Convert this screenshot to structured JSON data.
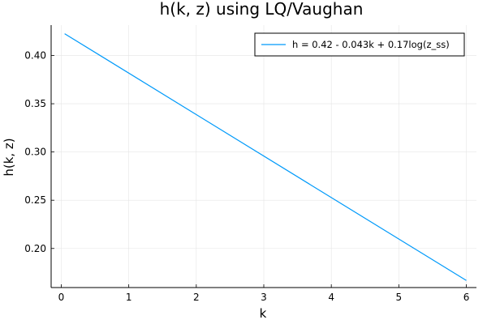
{
  "chart_data": {
    "type": "line",
    "title": "h(k, z) using LQ/Vaughan",
    "xlabel": "k",
    "ylabel": "h(k, z)",
    "xlim": [
      -0.15,
      6.15
    ],
    "ylim": [
      0.1595,
      0.4315
    ],
    "xticks": [
      0,
      1,
      2,
      3,
      4,
      5,
      6
    ],
    "yticks": [
      0.2,
      0.25,
      0.3,
      0.35,
      0.4
    ],
    "xtick_labels": [
      "0",
      "1",
      "2",
      "3",
      "4",
      "5",
      "6"
    ],
    "ytick_labels": [
      "0.20",
      "0.25",
      "0.30",
      "0.35",
      "0.40"
    ],
    "grid": true,
    "legend_position": "top-right",
    "series": [
      {
        "name": "h = 0.42 - 0.043k + 0.17log(z_ss)",
        "color": "#009AFA",
        "x": [
          0.05,
          6.0
        ],
        "y": [
          0.4226,
          0.1668
        ]
      }
    ]
  }
}
